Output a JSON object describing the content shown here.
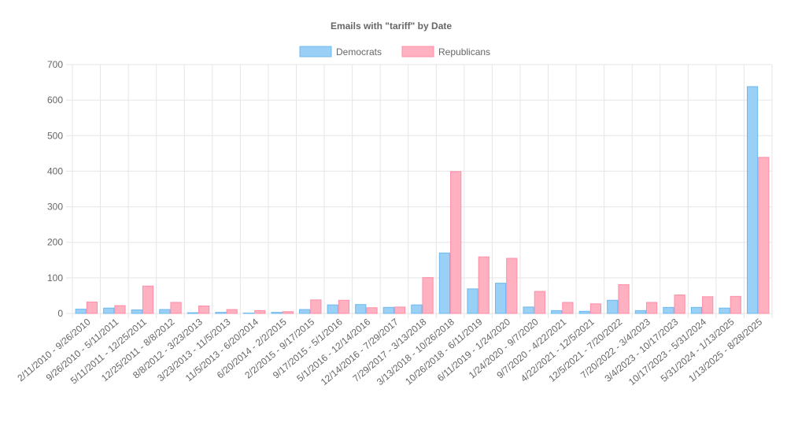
{
  "chart_data": {
    "type": "bar",
    "title": "Emails with \"tariff\" by Date",
    "xlabel": "",
    "ylabel": "",
    "ylim": [
      0,
      700
    ],
    "yticks": [
      0,
      100,
      200,
      300,
      400,
      500,
      600,
      700
    ],
    "grid": true,
    "legend_position": "top",
    "categories": [
      "2/11/2010 - 9/26/2010",
      "9/26/2010 - 5/11/2011",
      "5/11/2011 - 12/25/2011",
      "12/25/2011 - 8/8/2012",
      "8/8/2012 - 3/23/2013",
      "3/23/2013 - 11/5/2013",
      "11/5/2013 - 6/20/2014",
      "6/20/2014 - 2/2/2015",
      "2/2/2015 - 9/17/2015",
      "9/17/2015 - 5/1/2016",
      "5/1/2016 - 12/14/2016",
      "12/14/2016 - 7/29/2017",
      "7/29/2017 - 3/13/2018",
      "3/13/2018 - 10/26/2018",
      "10/26/2018 - 6/11/2019",
      "6/11/2019 - 1/24/2020",
      "1/24/2020 - 9/7/2020",
      "9/7/2020 - 4/22/2021",
      "4/22/2021 - 12/5/2021",
      "12/5/2021 - 7/20/2022",
      "7/20/2022 - 3/4/2023",
      "3/4/2023 - 10/17/2023",
      "10/17/2023 - 5/31/2024",
      "5/31/2024 - 1/13/2025",
      "1/13/2025 - 8/28/2025"
    ],
    "series": [
      {
        "name": "Democrats",
        "color": "#9ad0f5",
        "border": "#6cb8ee",
        "values": [
          12,
          15,
          10,
          11,
          2,
          3,
          1,
          3,
          11,
          24,
          25,
          17,
          24,
          170,
          69,
          85,
          18,
          8,
          6,
          37,
          8,
          17,
          17,
          15,
          638
        ]
      },
      {
        "name": "Republicans",
        "color": "#ffb1c1",
        "border": "#ff8da6",
        "values": [
          32,
          22,
          77,
          31,
          21,
          11,
          8,
          5,
          38,
          37,
          16,
          18,
          101,
          399,
          159,
          155,
          62,
          31,
          27,
          81,
          31,
          52,
          47,
          48,
          439
        ]
      }
    ]
  }
}
